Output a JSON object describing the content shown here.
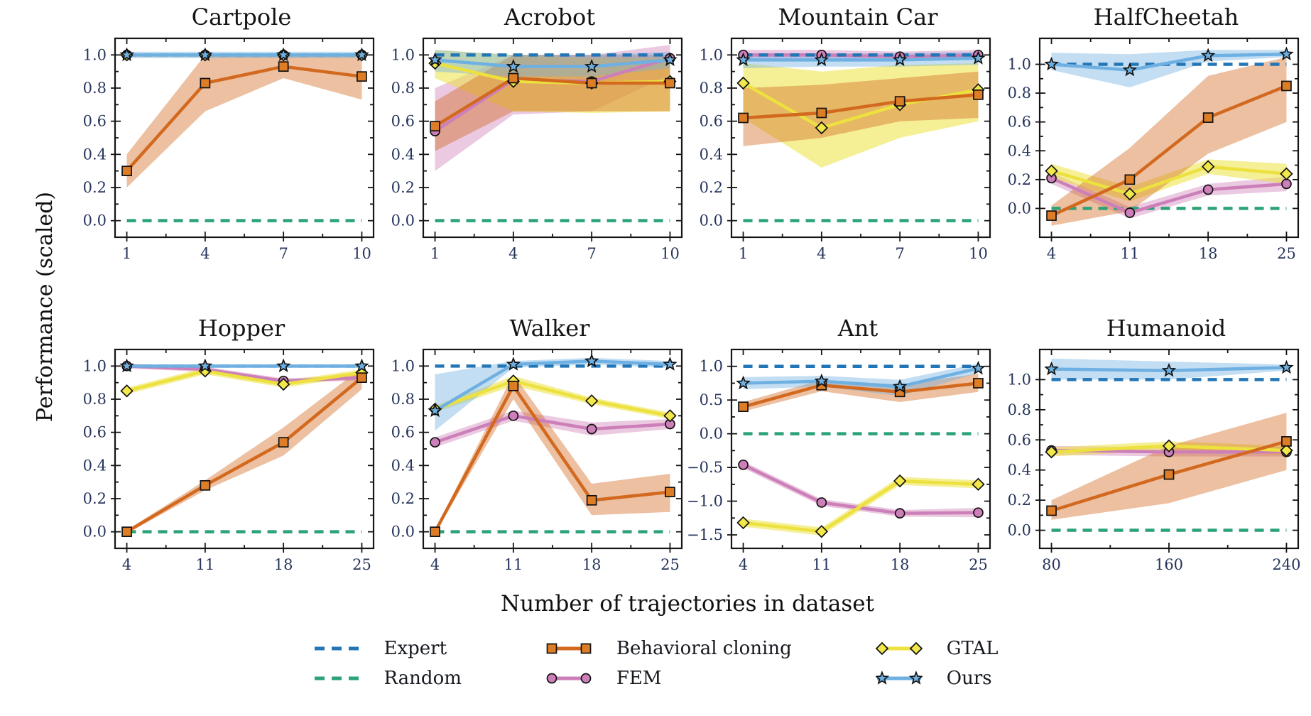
{
  "figure": {
    "ylabel": "Performance (scaled)",
    "xlabel": "Number of trajectories in dataset",
    "background": "#ffffff",
    "tick_label_color": "#27355c",
    "spine_color": "#151515"
  },
  "legend": {
    "position": "bottom-center",
    "items": [
      {
        "id": "expert",
        "label": "Expert",
        "color": "#2376B6",
        "dash": true,
        "marker": "none"
      },
      {
        "id": "random",
        "label": "Random",
        "color": "#2CA277",
        "dash": true,
        "marker": "none"
      },
      {
        "id": "bc",
        "label": "Behavioral cloning",
        "color": "#D2691E",
        "dash": false,
        "marker": "square",
        "marker_fill": "#DD7E26"
      },
      {
        "id": "fem",
        "label": "FEM",
        "color": "#CC7FB8",
        "dash": false,
        "marker": "circle",
        "marker_fill": "#CC7FB8"
      },
      {
        "id": "gtal",
        "label": "GTAL",
        "color": "#EDE13F",
        "dash": false,
        "marker": "diamond",
        "marker_fill": "#F2E84A"
      },
      {
        "id": "ours",
        "label": "Ours",
        "color": "#6FB0E2",
        "dash": false,
        "marker": "star",
        "marker_fill": "#6FB0E2"
      }
    ]
  },
  "chart_data": [
    {
      "type": "line",
      "title": "Cartpole",
      "x": [
        1,
        4,
        7,
        10
      ],
      "xtick_labels": [
        "1",
        "4",
        "7",
        "10"
      ],
      "ylim": [
        -0.1,
        1.1
      ],
      "yticks": [
        0.0,
        0.2,
        0.4,
        0.6,
        0.8,
        1.0
      ],
      "ytick_labels": [
        "0.0",
        "0.2",
        "0.4",
        "0.6",
        "0.8",
        "1.0"
      ],
      "series": [
        {
          "id": "expert",
          "values": [
            1.0,
            1.0,
            1.0,
            1.0
          ]
        },
        {
          "id": "random",
          "values": [
            0.0,
            0.0,
            0.0,
            0.0
          ]
        },
        {
          "id": "bc",
          "values": [
            0.3,
            0.83,
            0.93,
            0.87
          ],
          "band_lo": [
            0.2,
            0.66,
            0.86,
            0.73
          ],
          "band_hi": [
            0.4,
            1.0,
            1.0,
            1.0
          ]
        },
        {
          "id": "fem",
          "values": [
            1.0,
            1.0,
            1.0,
            1.0
          ]
        },
        {
          "id": "gtal",
          "values": [
            1.0,
            1.0,
            1.0,
            1.0
          ]
        },
        {
          "id": "ours",
          "values": [
            1.0,
            1.0,
            1.0,
            1.0
          ],
          "band_lo": [
            0.98,
            0.98,
            0.98,
            0.98
          ],
          "band_hi": [
            1.02,
            1.02,
            1.02,
            1.02
          ]
        }
      ]
    },
    {
      "type": "line",
      "title": "Acrobot",
      "x": [
        1,
        4,
        7,
        10
      ],
      "xtick_labels": [
        "1",
        "4",
        "7",
        "10"
      ],
      "ylim": [
        -0.1,
        1.1
      ],
      "yticks": [
        0.0,
        0.2,
        0.4,
        0.6,
        0.8,
        1.0
      ],
      "ytick_labels": [
        "0.0",
        "0.2",
        "0.4",
        "0.6",
        "0.8",
        "1.0"
      ],
      "series": [
        {
          "id": "expert",
          "values": [
            1.0,
            1.0,
            1.0,
            1.0
          ]
        },
        {
          "id": "random",
          "values": [
            0.0,
            0.0,
            0.0,
            0.0
          ]
        },
        {
          "id": "bc",
          "values": [
            0.57,
            0.86,
            0.83,
            0.83
          ],
          "band_lo": [
            0.42,
            0.66,
            0.66,
            0.66
          ],
          "band_hi": [
            0.72,
            1.0,
            1.0,
            1.0
          ]
        },
        {
          "id": "fem",
          "values": [
            0.54,
            0.85,
            0.84,
            0.98
          ],
          "band_lo": [
            0.3,
            0.64,
            0.66,
            0.88
          ],
          "band_hi": [
            0.8,
            1.0,
            1.0,
            1.06
          ]
        },
        {
          "id": "gtal",
          "values": [
            0.95,
            0.84,
            0.83,
            0.84
          ],
          "band_lo": [
            0.86,
            0.66,
            0.65,
            0.66
          ],
          "band_hi": [
            1.03,
            1.0,
            0.98,
            0.98
          ]
        },
        {
          "id": "ours",
          "values": [
            0.97,
            0.93,
            0.93,
            0.97
          ],
          "band_lo": [
            0.9,
            0.87,
            0.87,
            0.92
          ],
          "band_hi": [
            1.03,
            1.0,
            1.0,
            1.02
          ]
        }
      ]
    },
    {
      "type": "line",
      "title": "Mountain Car",
      "x": [
        1,
        4,
        7,
        10
      ],
      "xtick_labels": [
        "1",
        "4",
        "7",
        "10"
      ],
      "ylim": [
        -0.1,
        1.1
      ],
      "yticks": [
        0.0,
        0.2,
        0.4,
        0.6,
        0.8,
        1.0
      ],
      "ytick_labels": [
        "0.0",
        "0.2",
        "0.4",
        "0.6",
        "0.8",
        "1.0"
      ],
      "series": [
        {
          "id": "expert",
          "values": [
            1.0,
            1.0,
            1.0,
            1.0
          ]
        },
        {
          "id": "random",
          "values": [
            0.0,
            0.0,
            0.0,
            0.0
          ]
        },
        {
          "id": "bc",
          "values": [
            0.62,
            0.65,
            0.72,
            0.76
          ],
          "band_lo": [
            0.45,
            0.5,
            0.6,
            0.62
          ],
          "band_hi": [
            0.8,
            0.82,
            0.86,
            0.9
          ]
        },
        {
          "id": "fem",
          "values": [
            1.0,
            1.0,
            0.99,
            1.0
          ],
          "band_lo": [
            0.97,
            0.97,
            0.97,
            0.97
          ],
          "band_hi": [
            1.03,
            1.03,
            1.02,
            1.03
          ]
        },
        {
          "id": "gtal",
          "values": [
            0.83,
            0.56,
            0.7,
            0.79
          ],
          "band_lo": [
            0.62,
            0.32,
            0.5,
            0.6
          ],
          "band_hi": [
            0.95,
            0.9,
            0.94,
            0.95
          ]
        },
        {
          "id": "ours",
          "values": [
            0.97,
            0.97,
            0.97,
            0.98
          ],
          "band_lo": [
            0.92,
            0.93,
            0.93,
            0.94
          ],
          "band_hi": [
            1.01,
            1.01,
            1.01,
            1.02
          ]
        }
      ]
    },
    {
      "type": "line",
      "title": "HalfCheetah",
      "x": [
        4,
        11,
        18,
        25
      ],
      "xtick_labels": [
        "4",
        "11",
        "18",
        "25"
      ],
      "ylim": [
        -0.2,
        1.18
      ],
      "yticks": [
        0.0,
        0.2,
        0.4,
        0.6,
        0.8,
        1.0
      ],
      "ytick_labels": [
        "0.0",
        "0.2",
        "0.4",
        "0.6",
        "0.8",
        "1.0"
      ],
      "series": [
        {
          "id": "expert",
          "values": [
            1.0,
            1.0,
            1.0,
            1.0
          ]
        },
        {
          "id": "random",
          "values": [
            0.0,
            0.0,
            0.0,
            0.0
          ]
        },
        {
          "id": "bc",
          "values": [
            -0.05,
            0.2,
            0.63,
            0.85
          ],
          "band_lo": [
            -0.12,
            -0.02,
            0.38,
            0.6
          ],
          "band_hi": [
            0.02,
            0.42,
            0.92,
            1.05
          ]
        },
        {
          "id": "fem",
          "values": [
            0.21,
            -0.03,
            0.13,
            0.17
          ],
          "band_lo": [
            0.17,
            -0.07,
            0.09,
            0.12
          ],
          "band_hi": [
            0.25,
            0.01,
            0.17,
            0.22
          ]
        },
        {
          "id": "gtal",
          "values": [
            0.26,
            0.1,
            0.29,
            0.24
          ],
          "band_lo": [
            0.21,
            0.05,
            0.24,
            0.17
          ],
          "band_hi": [
            0.31,
            0.15,
            0.34,
            0.31
          ]
        },
        {
          "id": "ours",
          "values": [
            1.0,
            0.96,
            1.06,
            1.07
          ],
          "band_lo": [
            0.96,
            0.84,
            1.02,
            1.05
          ],
          "band_hi": [
            1.08,
            1.07,
            1.1,
            1.1
          ]
        }
      ]
    },
    {
      "type": "line",
      "title": "Hopper",
      "x": [
        4,
        11,
        18,
        25
      ],
      "xtick_labels": [
        "4",
        "11",
        "18",
        "25"
      ],
      "ylim": [
        -0.1,
        1.1
      ],
      "yticks": [
        0.0,
        0.2,
        0.4,
        0.6,
        0.8,
        1.0
      ],
      "ytick_labels": [
        "0.0",
        "0.2",
        "0.4",
        "0.6",
        "0.8",
        "1.0"
      ],
      "series": [
        {
          "id": "expert",
          "values": [
            1.0,
            1.0,
            1.0,
            1.0
          ]
        },
        {
          "id": "random",
          "values": [
            0.0,
            0.0,
            0.0,
            0.0
          ]
        },
        {
          "id": "bc",
          "values": [
            0.0,
            0.28,
            0.54,
            0.93
          ],
          "band_lo": [
            -0.01,
            0.25,
            0.46,
            0.86
          ],
          "band_hi": [
            0.01,
            0.31,
            0.63,
            0.99
          ]
        },
        {
          "id": "fem",
          "values": [
            1.0,
            0.98,
            0.91,
            0.93
          ],
          "band_lo": [
            0.985,
            0.965,
            0.895,
            0.915
          ],
          "band_hi": [
            1.015,
            0.995,
            0.925,
            0.945
          ]
        },
        {
          "id": "gtal",
          "values": [
            0.85,
            0.97,
            0.89,
            0.96
          ],
          "band_lo": [
            0.83,
            0.95,
            0.87,
            0.94
          ],
          "band_hi": [
            0.87,
            0.99,
            0.91,
            0.98
          ]
        },
        {
          "id": "ours",
          "values": [
            1.0,
            1.0,
            1.0,
            1.0
          ],
          "band_lo": [
            0.99,
            0.99,
            0.99,
            0.99
          ],
          "band_hi": [
            1.01,
            1.01,
            1.01,
            1.01
          ]
        }
      ]
    },
    {
      "type": "line",
      "title": "Walker",
      "x": [
        4,
        11,
        18,
        25
      ],
      "xtick_labels": [
        "4",
        "11",
        "18",
        "25"
      ],
      "ylim": [
        -0.1,
        1.1
      ],
      "yticks": [
        0.0,
        0.2,
        0.4,
        0.6,
        0.8,
        1.0
      ],
      "ytick_labels": [
        "0.0",
        "0.2",
        "0.4",
        "0.6",
        "0.8",
        "1.0"
      ],
      "series": [
        {
          "id": "expert",
          "values": [
            1.0,
            1.0,
            1.0,
            1.0
          ]
        },
        {
          "id": "random",
          "values": [
            0.0,
            0.0,
            0.0,
            0.0
          ]
        },
        {
          "id": "bc",
          "values": [
            0.0,
            0.88,
            0.19,
            0.24
          ],
          "band_lo": [
            -0.01,
            0.8,
            0.1,
            0.12
          ],
          "band_hi": [
            0.01,
            0.95,
            0.29,
            0.35
          ]
        },
        {
          "id": "fem",
          "values": [
            0.54,
            0.7,
            0.62,
            0.65
          ],
          "band_lo": [
            0.51,
            0.67,
            0.58,
            0.62
          ],
          "band_hi": [
            0.57,
            0.73,
            0.66,
            0.68
          ]
        },
        {
          "id": "gtal",
          "values": [
            0.74,
            0.91,
            0.79,
            0.7
          ],
          "band_lo": [
            0.72,
            0.88,
            0.77,
            0.68
          ],
          "band_hi": [
            0.76,
            0.94,
            0.81,
            0.72
          ]
        },
        {
          "id": "ours",
          "values": [
            0.73,
            1.01,
            1.03,
            1.01
          ],
          "band_lo": [
            0.61,
            0.99,
            1.01,
            0.99
          ],
          "band_hi": [
            0.95,
            1.03,
            1.05,
            1.03
          ]
        }
      ]
    },
    {
      "type": "line",
      "title": "Ant",
      "x": [
        4,
        11,
        18,
        25
      ],
      "xtick_labels": [
        "4",
        "11",
        "18",
        "25"
      ],
      "ylim": [
        -1.7,
        1.25
      ],
      "yticks": [
        1.0,
        0.5,
        0.0,
        -0.5,
        -1.0,
        -1.5
      ],
      "ytick_labels": [
        "1.0",
        "0.5",
        "0.0",
        "−0.5",
        "−1.0",
        "−1.5"
      ],
      "series": [
        {
          "id": "expert",
          "values": [
            1.0,
            1.0,
            1.0,
            1.0
          ]
        },
        {
          "id": "random",
          "values": [
            0.0,
            0.0,
            0.0,
            0.0
          ]
        },
        {
          "id": "bc",
          "values": [
            0.4,
            0.72,
            0.62,
            0.75
          ],
          "band_lo": [
            0.33,
            0.63,
            0.47,
            0.62
          ],
          "band_hi": [
            0.47,
            0.8,
            0.73,
            0.89
          ]
        },
        {
          "id": "fem",
          "values": [
            -0.46,
            -1.02,
            -1.18,
            -1.17
          ],
          "band_lo": [
            -0.51,
            -1.07,
            -1.23,
            -1.24
          ],
          "band_hi": [
            -0.41,
            -0.97,
            -1.13,
            -1.1
          ]
        },
        {
          "id": "gtal",
          "values": [
            -1.32,
            -1.45,
            -0.7,
            -0.75
          ],
          "band_lo": [
            -1.38,
            -1.51,
            -0.76,
            -0.81
          ],
          "band_hi": [
            -1.26,
            -1.39,
            -0.64,
            -0.69
          ]
        },
        {
          "id": "ours",
          "values": [
            0.75,
            0.78,
            0.7,
            0.97
          ],
          "band_lo": [
            0.66,
            0.7,
            0.56,
            0.9
          ],
          "band_hi": [
            0.84,
            0.86,
            0.8,
            1.04
          ]
        }
      ]
    },
    {
      "type": "line",
      "title": "Humanoid",
      "x": [
        80,
        160,
        240
      ],
      "xtick_labels": [
        "80",
        "160",
        "240"
      ],
      "ylim": [
        -0.12,
        1.2
      ],
      "yticks": [
        0.0,
        0.2,
        0.4,
        0.6,
        0.8,
        1.0
      ],
      "ytick_labels": [
        "0.0",
        "0.2",
        "0.4",
        "0.6",
        "0.8",
        "1.0"
      ],
      "series": [
        {
          "id": "expert",
          "values": [
            1.0,
            1.0,
            1.0
          ]
        },
        {
          "id": "random",
          "values": [
            0.0,
            0.0,
            0.0
          ]
        },
        {
          "id": "bc",
          "values": [
            0.13,
            0.37,
            0.59
          ],
          "band_lo": [
            0.07,
            0.18,
            0.4
          ],
          "band_hi": [
            0.2,
            0.56,
            0.78
          ]
        },
        {
          "id": "fem",
          "values": [
            0.53,
            0.52,
            0.52
          ],
          "band_lo": [
            0.5,
            0.49,
            0.49
          ],
          "band_hi": [
            0.56,
            0.55,
            0.55
          ]
        },
        {
          "id": "gtal",
          "values": [
            0.52,
            0.56,
            0.53
          ],
          "band_lo": [
            0.49,
            0.53,
            0.5
          ],
          "band_hi": [
            0.55,
            0.59,
            0.56
          ]
        },
        {
          "id": "ours",
          "values": [
            1.07,
            1.06,
            1.08
          ],
          "band_lo": [
            1.0,
            1.0,
            1.06
          ],
          "band_hi": [
            1.14,
            1.12,
            1.1
          ]
        }
      ]
    }
  ]
}
